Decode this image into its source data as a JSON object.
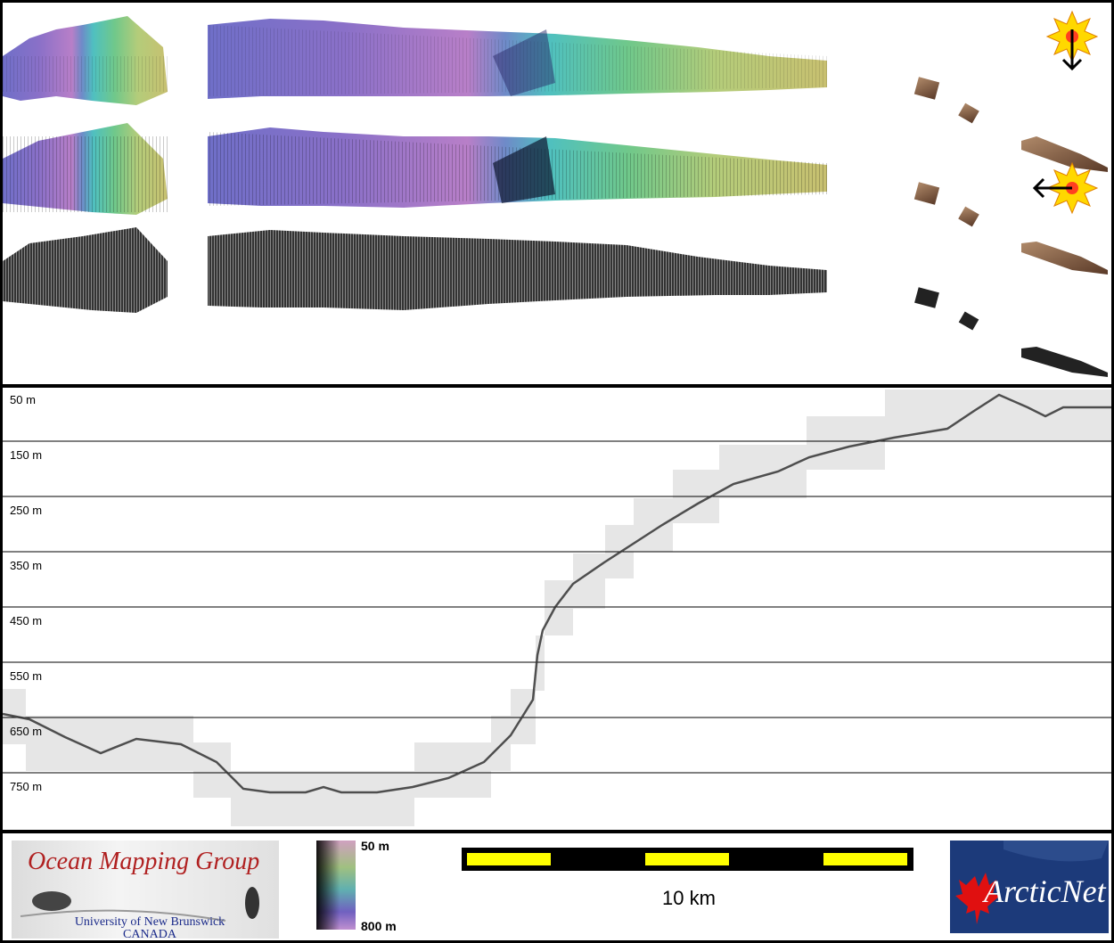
{
  "depth_axis": {
    "labels": [
      "50 m",
      "150 m",
      "250 m",
      "350 m",
      "450 m",
      "550 m",
      "650 m",
      "750 m"
    ]
  },
  "legend": {
    "org_name": "Ocean Mapping Group",
    "org_university": "University of New Brunswick",
    "org_country": "CANADA",
    "colorbar_top": "50 m",
    "colorbar_bottom": "800 m",
    "scale_bar_label": "10 km",
    "partner_logo": "ArcticNet",
    "scale_colors": {
      "bar": "#000000",
      "segment": "#ffff00"
    }
  },
  "map_panel": {
    "illumination_icons": [
      "sun-arrow-down-icon",
      "sun-arrow-left-icon"
    ],
    "colors": {
      "purple": "#8a78c8",
      "green": "#6cc18a",
      "yellow": "#c8c86a",
      "brown": "#8a6a50"
    }
  }
}
